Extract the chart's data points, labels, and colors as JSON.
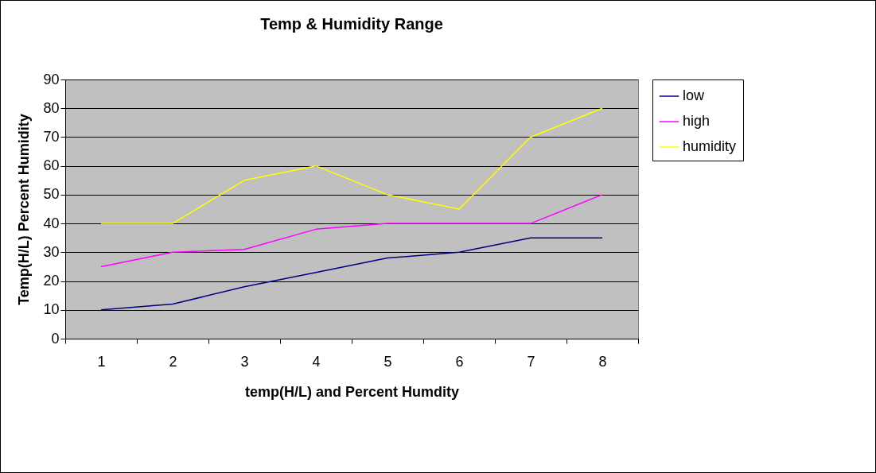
{
  "chart_data": {
    "type": "line",
    "title": "Temp & Humidity Range",
    "xlabel": "temp(H/L) and Percent Humdity",
    "ylabel": "Temp(H/L) Percent Humidity",
    "categories": [
      "1",
      "2",
      "3",
      "4",
      "5",
      "6",
      "7",
      "8"
    ],
    "series": [
      {
        "name": "low",
        "color": "#000080",
        "values": [
          10,
          12,
          18,
          23,
          28,
          30,
          35,
          35
        ]
      },
      {
        "name": "high",
        "color": "#ff00ff",
        "values": [
          25,
          30,
          31,
          38,
          40,
          40,
          40,
          50
        ]
      },
      {
        "name": "humidity",
        "color": "#ffff00",
        "values": [
          40,
          40,
          55,
          60,
          50,
          45,
          70,
          80
        ]
      }
    ],
    "ylim": [
      0,
      90
    ],
    "yticks": [
      0,
      10,
      20,
      30,
      40,
      50,
      60,
      70,
      80,
      90
    ],
    "grid": "y",
    "legend": "right",
    "marker": "none",
    "line_style": "solid"
  }
}
